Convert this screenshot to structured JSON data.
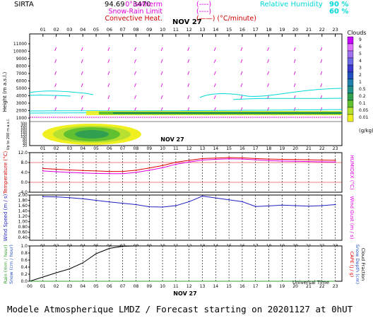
{
  "header": {
    "station": "SIRTA",
    "coord": "94.69",
    "coord_overlap": "3470",
    "legend": [
      {
        "label": "0°isotherm",
        "key": "(----)",
        "color": "#e000e0"
      },
      {
        "label": "Snow-Rain Limit",
        "key": "(----)",
        "color": "#e000e0"
      },
      {
        "label": "Convective Heat.",
        "key": "(——) (°C/minute)",
        "color": "#d00000"
      }
    ],
    "rh_label": "Relative Humidity",
    "rh_values": [
      "90 %",
      "60 %"
    ],
    "rh_color": "#00d8d8"
  },
  "hours": [
    "01",
    "02",
    "03",
    "04",
    "05",
    "06",
    "07",
    "08",
    "09",
    "10",
    "11",
    "12",
    "13",
    "14",
    "15",
    "16",
    "17",
    "18",
    "19",
    "20",
    "21",
    "22",
    "23"
  ],
  "hours_bottom": [
    "00",
    "01",
    "02",
    "03",
    "04",
    "05",
    "06",
    "07",
    "08",
    "09",
    "10",
    "11",
    "12",
    "13",
    "14",
    "15",
    "16",
    "17",
    "18",
    "19",
    "20",
    "21",
    "22",
    "23"
  ],
  "date_label": "NOV 27",
  "cloud_scale": {
    "title": "Clouds",
    "labels": [
      "9",
      "6",
      "5",
      "4",
      "3",
      "2",
      "1",
      "0.5",
      "0.2",
      "0.1",
      "0.05",
      "0.01"
    ],
    "colors": [
      "#c800ff",
      "#e070ff",
      "#a070f0",
      "#6a6ae8",
      "#3a3ad0",
      "#2050c0",
      "#2080b0",
      "#20908a",
      "#30a050",
      "#60c030",
      "#b8e030",
      "#f0f020"
    ],
    "unit": "(g/kg)"
  },
  "height_panel": {
    "ylabel": "Height (m a.s.l.)",
    "ylabel_low": "Up to 200 m a.s.l.",
    "ticks": [
      "11000",
      "10000",
      "9000",
      "8000",
      "7000",
      "6000",
      "5000",
      "4000",
      "3000",
      "2000",
      "1000",
      "500",
      "200",
      "180",
      "160",
      "140",
      "120",
      "100",
      "80",
      "60",
      "40",
      "20"
    ],
    "contour_labels": [
      "60",
      "90"
    ]
  },
  "temp_panel": {
    "ylabel_left": "Temperature (°C)",
    "ylabel_right": "HUMIDEX (°C)",
    "ticks": [
      "12.0",
      "8.0",
      "4.0",
      "0.0",
      "-4.0"
    ]
  },
  "wind_panel": {
    "ylabel_left": "Wind Speed (m / s)",
    "ylabel_right": "Wind Gust (m / s)",
    "ticks": [
      "2.00",
      "1.80",
      "1.60",
      "1.40",
      "1.20",
      "1.00",
      "0.80",
      "0.60",
      "0.40"
    ]
  },
  "rain_panel": {
    "ylabel_left_1": "Rain (mm / hour)",
    "ylabel_left_2": "Snow (cm / hour)",
    "ylabel_right_1": "CAPE (J / g)",
    "ylabel_right_2": "Snow Depth (cm)",
    "ylabel_right_3": "Cloud Fraction",
    "ticks": [
      "1.0",
      "0.8",
      "0.6",
      "0.4",
      "0.2",
      "0.0"
    ],
    "xlabel": "Universal Time"
  },
  "footer": "Modele Atmospherique LMDZ / Forecast starting on 20201127 at 0hUT",
  "chart_data": [
    {
      "type": "line",
      "title": "Temperature",
      "x": [
        1,
        2,
        3,
        4,
        5,
        6,
        7,
        8,
        9,
        10,
        11,
        12,
        13,
        14,
        15,
        16,
        17,
        18,
        19,
        20,
        21,
        22,
        23
      ],
      "series": [
        {
          "name": "Temperature (°C)",
          "color": "#dd0000",
          "values": [
            5.6,
            5.3,
            5.0,
            4.8,
            4.6,
            4.4,
            4.4,
            4.9,
            5.8,
            6.8,
            8.1,
            8.9,
            9.6,
            9.8,
            10.0,
            9.9,
            9.6,
            9.4,
            9.3,
            9.2,
            9.1,
            9.0,
            8.9
          ]
        },
        {
          "name": "HUMIDEX (°C)",
          "color": "#e000e0",
          "values": [
            4.6,
            4.3,
            4.0,
            3.8,
            3.6,
            3.5,
            3.5,
            4.0,
            4.9,
            5.9,
            7.3,
            8.2,
            9.0,
            9.3,
            9.5,
            9.4,
            9.1,
            8.8,
            8.6,
            8.5,
            8.4,
            8.3,
            8.2
          ]
        }
      ],
      "ylim": [
        -4,
        12
      ],
      "ref_lines": [
        0,
        8
      ]
    },
    {
      "type": "line",
      "title": "Wind",
      "x": [
        1,
        2,
        3,
        4,
        5,
        6,
        7,
        8,
        9,
        10,
        11,
        12,
        13,
        14,
        15,
        16,
        17,
        18,
        19,
        20,
        21,
        22,
        23
      ],
      "series": [
        {
          "name": "Wind Speed (m / s)",
          "color": "#2020c0",
          "values": [
            1.94,
            1.93,
            1.9,
            1.86,
            1.8,
            1.74,
            1.69,
            1.64,
            1.56,
            1.55,
            1.6,
            1.75,
            1.96,
            1.89,
            1.82,
            1.75,
            1.57,
            1.59,
            1.62,
            1.6,
            1.58,
            1.6,
            1.64
          ]
        }
      ],
      "ylim": [
        0.3,
        2.0
      ]
    },
    {
      "type": "line",
      "title": "Rain",
      "x": [
        0,
        1,
        2,
        3,
        4,
        5,
        6,
        7,
        8,
        9,
        10,
        11,
        12,
        13,
        14,
        15,
        16,
        17,
        18,
        19,
        20,
        21,
        22,
        23
      ],
      "series": [
        {
          "name": "Cloud Fraction",
          "color": "#000000",
          "values": [
            0.0,
            0.12,
            0.24,
            0.35,
            0.52,
            0.78,
            0.93,
            0.99,
            1.0,
            1.0,
            1.0,
            1.0,
            1.0,
            1.0,
            1.0,
            1.0,
            1.0,
            1.0,
            1.0,
            1.0,
            1.0,
            1.0,
            1.0,
            1.0
          ]
        },
        {
          "name": "Rain (mm / hour)",
          "color": "#30a030",
          "values": [
            0,
            0,
            0,
            0,
            0,
            0,
            0,
            0,
            0,
            0,
            0,
            0,
            0,
            0,
            0,
            0,
            0,
            0,
            0,
            0,
            0,
            0,
            0,
            0
          ]
        }
      ],
      "ylim": [
        0,
        1.0
      ]
    }
  ]
}
